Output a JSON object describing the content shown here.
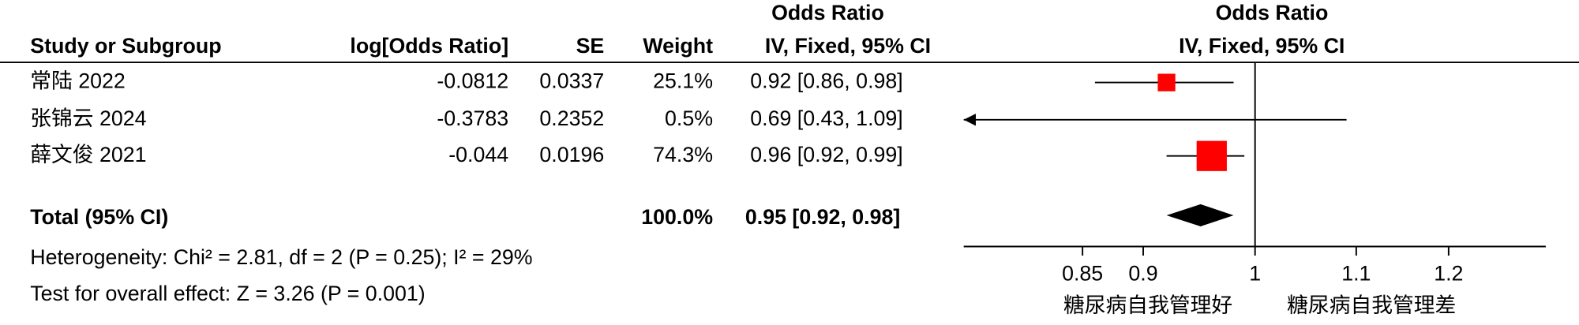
{
  "chart_data": {
    "type": "forest",
    "table_header_top": "Odds Ratio",
    "plot_header_top": "Odds Ratio",
    "columns": [
      "Study or Subgroup",
      "log[Odds Ratio]",
      "SE",
      "Weight",
      "IV, Fixed, 95% CI"
    ],
    "plot_header": "IV, Fixed, 95% CI",
    "categories": [
      "常陆 2022",
      "张锦云 2024",
      "薛文俊 2021"
    ],
    "log_or": [
      -0.0812,
      -0.3783,
      -0.044
    ],
    "se": [
      0.0337,
      0.2352,
      0.0196
    ],
    "weight": [
      25.1,
      0.5,
      74.3
    ],
    "weight_labels": [
      "25.1%",
      "0.5%",
      "74.3%"
    ],
    "or": [
      0.92,
      0.69,
      0.96
    ],
    "ci_lower": [
      0.86,
      0.43,
      0.92
    ],
    "ci_upper": [
      0.98,
      1.09,
      0.99
    ],
    "or_labels": [
      "0.92 [0.86, 0.98]",
      "0.69 [0.43, 1.09]",
      "0.96 [0.92, 0.99]"
    ],
    "color": "#ff0000",
    "total": {
      "label": "Total (95% CI)",
      "weight": 100.0,
      "weight_label": "100.0%",
      "or": 0.95,
      "ci_lower": 0.92,
      "ci_upper": 0.98,
      "or_label": "0.95 [0.92, 0.98]",
      "color": "#000000"
    },
    "heterogeneity": "Heterogeneity: Chi² = 2.81, df = 2 (P = 0.25); I² = 29%",
    "overall_effect": "Test for overall effect: Z = 3.26 (P = 0.001)",
    "xlim": [
      0.76,
      1.315
    ],
    "xticks": [
      0.85,
      0.9,
      1,
      1.1,
      1.2
    ],
    "x_log": true,
    "favours_left": "糖尿病自我管理好",
    "favours_right": "糖尿病自我管理差"
  }
}
